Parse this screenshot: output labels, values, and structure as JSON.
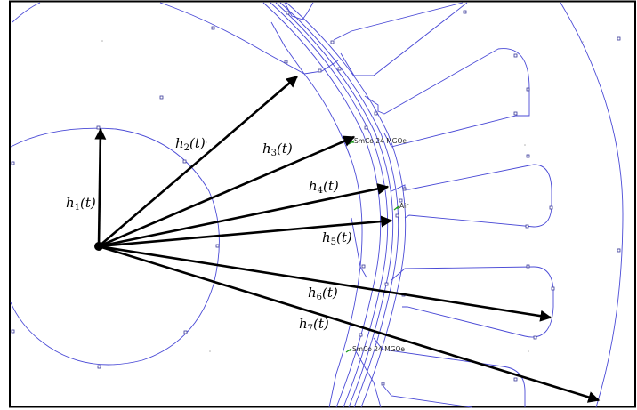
{
  "diagram": {
    "vector_labels": [
      {
        "sym": "h",
        "sub": "1",
        "arg": "(t)"
      },
      {
        "sym": "h",
        "sub": "2",
        "arg": "(t)"
      },
      {
        "sym": "h",
        "sub": "3",
        "arg": "(t)"
      },
      {
        "sym": "h",
        "sub": "4",
        "arg": "(t)"
      },
      {
        "sym": "h",
        "sub": "5",
        "arg": "(t)"
      },
      {
        "sym": "h",
        "sub": "6",
        "arg": "(t)"
      },
      {
        "sym": "h",
        "sub": "7",
        "arg": "(t)"
      }
    ],
    "material_labels": [
      "SmCo 24 MGOe",
      "Air",
      "SmCo 24 MGOe"
    ],
    "colors": {
      "geometry": "#4a4ad6",
      "vectors": "#000000",
      "material_marker": "#1a9a1a",
      "frame": "#000000"
    }
  }
}
